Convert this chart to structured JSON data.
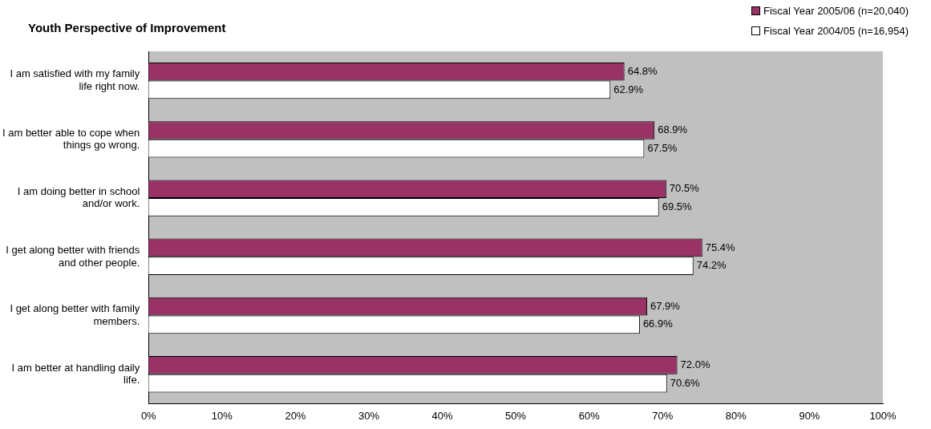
{
  "chart_data": {
    "type": "bar",
    "orientation": "horizontal",
    "title": "Youth Perspective of Improvement",
    "categories": [
      "I am satisfied with my family life right now.",
      "I am better able to cope when things go wrong.",
      "I am doing better in school and/or work.",
      "I get along better with friends and other people.",
      "I get along better with family members.",
      "I am better at handling daily life."
    ],
    "series": [
      {
        "name": "Fiscal Year 2005/06 (n=20,040)",
        "color": "#993366",
        "values": [
          64.8,
          68.9,
          70.5,
          75.4,
          67.9,
          72.0
        ],
        "value_labels": [
          "64.8%",
          "68.9%",
          "70.5%",
          "75.4%",
          "67.9%",
          "72.0%"
        ]
      },
      {
        "name": "Fiscal Year 2004/05 (n=16,954)",
        "color": "#ffffff",
        "values": [
          62.9,
          67.5,
          69.5,
          74.2,
          66.9,
          70.6
        ],
        "value_labels": [
          "62.9%",
          "67.5%",
          "69.5%",
          "74.2%",
          "66.9%",
          "70.6%"
        ]
      }
    ],
    "xlim": [
      0,
      100
    ],
    "xticks": [
      {
        "value": 0,
        "label": "0%"
      },
      {
        "value": 10,
        "label": "10%"
      },
      {
        "value": 20,
        "label": "20%"
      },
      {
        "value": 30,
        "label": "30%"
      },
      {
        "value": 40,
        "label": "40%"
      },
      {
        "value": 50,
        "label": "50%"
      },
      {
        "value": 60,
        "label": "60%"
      },
      {
        "value": 70,
        "label": "70%"
      },
      {
        "value": 80,
        "label": "80%"
      },
      {
        "value": 90,
        "label": "90%"
      },
      {
        "value": 100,
        "label": "100%"
      }
    ],
    "grid": false,
    "legend": "top right"
  }
}
